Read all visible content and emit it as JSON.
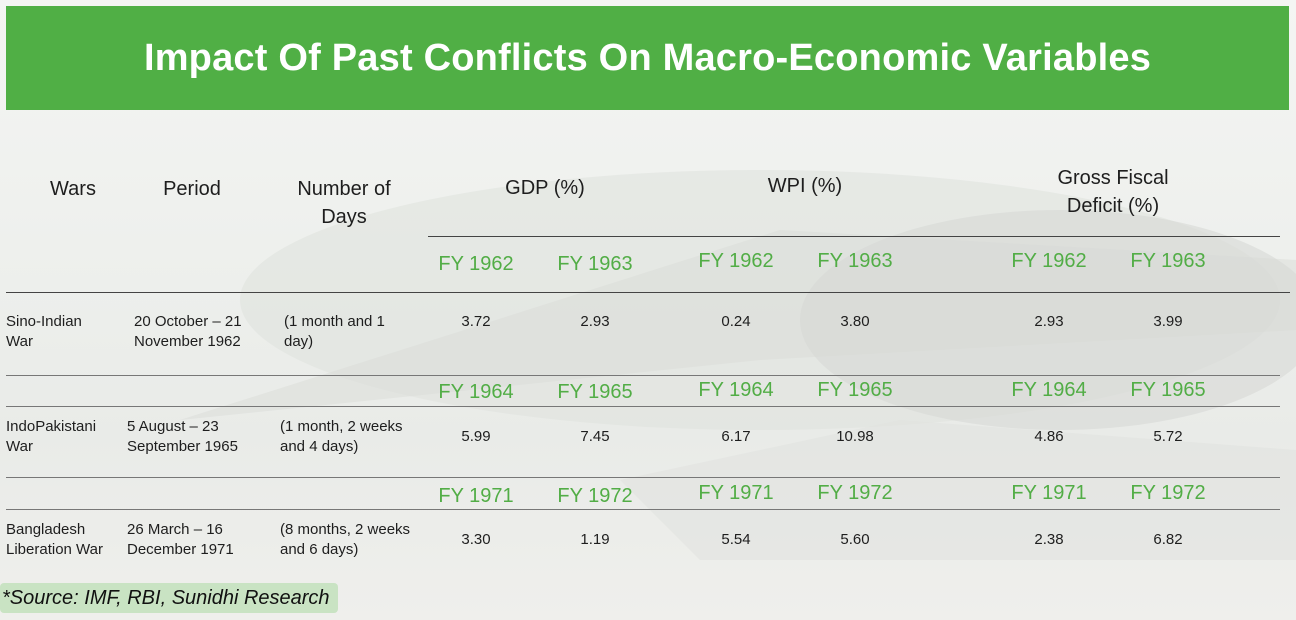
{
  "title": "Impact Of Past Conflicts On Macro-Economic Variables",
  "headers": {
    "wars": "Wars",
    "period": "Period",
    "days_line1": "Number of",
    "days_line2": "Days",
    "gdp": "GDP (%)",
    "wpi": "WPI (%)",
    "gfd_line1": "Gross Fiscal",
    "gfd_line2": "Deficit (%)"
  },
  "rows": [
    {
      "war_line1": "Sino-Indian",
      "war_line2": "War",
      "period_line1": "20 October – 21",
      "period_line2": "November 1962",
      "days_line1": "(1 month and 1",
      "days_line2": "day)",
      "years": [
        "FY 1962",
        "FY 1963"
      ],
      "gdp": [
        "3.72",
        "2.93"
      ],
      "wpi": [
        "0.24",
        "3.80"
      ],
      "gfd": [
        "2.93",
        "3.99"
      ]
    },
    {
      "war_line1": "IndoPakistani",
      "war_line2": "War",
      "period_line1": "5 August – 23",
      "period_line2": "September 1965",
      "days_line1": "(1 month, 2 weeks",
      "days_line2": "and 4 days)",
      "years": [
        "FY 1964",
        "FY 1965"
      ],
      "gdp": [
        "5.99",
        "7.45"
      ],
      "wpi": [
        "6.17",
        "10.98"
      ],
      "gfd": [
        "4.86",
        "5.72"
      ]
    },
    {
      "war_line1": "Bangladesh",
      "war_line2": "Liberation War",
      "period_line1": "26 March – 16",
      "period_line2": "December 1971",
      "days_line1": "(8 months, 2 weeks",
      "days_line2": "and 6 days)",
      "years": [
        "FY 1971",
        "FY 1972"
      ],
      "gdp": [
        "3.30",
        "1.19"
      ],
      "wpi": [
        "5.54",
        "5.60"
      ],
      "gfd": [
        "2.38",
        "6.82"
      ]
    }
  ],
  "source": "*Source: IMF, RBI, Sunidhi Research",
  "colors": {
    "banner": "#50af45",
    "fy_text": "#52ad46",
    "source_bg": "#c9e3c3"
  }
}
